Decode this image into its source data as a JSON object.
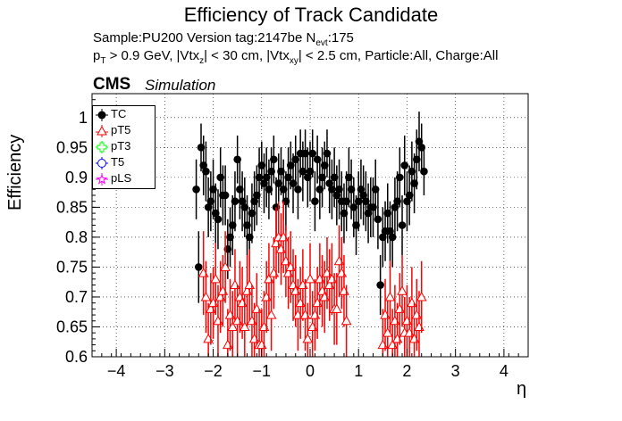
{
  "header": {
    "title": "Efficiency of Track Candidate",
    "sample": "Sample:PU200   Version tag:2147be  N",
    "nevt_sub": "evt",
    "nevt_val": ":175",
    "cuts_pt": "p",
    "cuts_pt_sub": "T",
    "cuts_1": " > 0.9 GeV, |Vtx",
    "cuts_z_sub": "z",
    "cuts_2": "| < 30 cm, |Vtx",
    "cuts_xy_sub": "xy",
    "cuts_3": "| < 2.5 cm, Particle:All, Charge:All",
    "cms": "CMS",
    "simulation": "Simulation"
  },
  "chart_data": {
    "type": "scatter",
    "title": "Efficiency of Track Candidate",
    "xlabel": "η",
    "ylabel": "Efficiency",
    "xlim": [
      -4.5,
      4.5
    ],
    "ylim": [
      0.6,
      1.04
    ],
    "xticks": [
      -4,
      -3,
      -2,
      -1,
      0,
      1,
      2,
      3,
      4
    ],
    "yticks": [
      0.6,
      0.65,
      0.7,
      0.75,
      0.8,
      0.85,
      0.9,
      0.95,
      1
    ],
    "ytick_labels": [
      "0.6",
      "0.65",
      "0.7",
      "0.75",
      "0.8",
      "0.85",
      "0.9",
      "0.95",
      "1"
    ],
    "grid": true,
    "legend_position": "top-left",
    "series": [
      {
        "name": "TC",
        "color": "#000000",
        "marker": "filled-circle",
        "x": [
          -2.35,
          -2.3,
          -2.25,
          -2.2,
          -2.15,
          -2.1,
          -2.05,
          -2.0,
          -1.95,
          -1.9,
          -1.85,
          -1.8,
          -1.75,
          -1.7,
          -1.65,
          -1.6,
          -1.55,
          -1.5,
          -1.45,
          -1.4,
          -1.35,
          -1.3,
          -1.25,
          -1.2,
          -1.15,
          -1.1,
          -1.05,
          -1.0,
          -0.95,
          -0.9,
          -0.85,
          -0.8,
          -0.75,
          -0.7,
          -0.65,
          -0.6,
          -0.55,
          -0.5,
          -0.45,
          -0.4,
          -0.35,
          -0.3,
          -0.25,
          -0.2,
          -0.15,
          -0.1,
          -0.05,
          0.0,
          0.05,
          0.1,
          0.15,
          0.2,
          0.25,
          0.3,
          0.35,
          0.4,
          0.45,
          0.5,
          0.55,
          0.6,
          0.65,
          0.7,
          0.75,
          0.8,
          0.85,
          0.9,
          0.95,
          1.0,
          1.05,
          1.1,
          1.15,
          1.2,
          1.25,
          1.3,
          1.35,
          1.4,
          1.45,
          1.5,
          1.55,
          1.6,
          1.65,
          1.7,
          1.75,
          1.8,
          1.85,
          1.9,
          1.95,
          2.0,
          2.05,
          2.1,
          2.15,
          2.2,
          2.25,
          2.3,
          2.35
        ],
        "y": [
          0.88,
          0.75,
          0.95,
          0.92,
          0.91,
          0.85,
          0.86,
          0.88,
          0.84,
          0.83,
          0.9,
          0.87,
          0.87,
          0.78,
          0.8,
          0.82,
          0.86,
          0.93,
          0.88,
          0.86,
          0.85,
          0.82,
          0.8,
          0.84,
          0.86,
          0.87,
          0.9,
          0.92,
          0.89,
          0.9,
          0.88,
          0.91,
          0.93,
          0.85,
          0.89,
          0.91,
          0.88,
          0.86,
          0.9,
          0.92,
          0.89,
          0.93,
          0.88,
          0.94,
          0.91,
          0.94,
          0.9,
          0.91,
          0.94,
          0.86,
          0.93,
          0.88,
          0.9,
          0.92,
          0.94,
          0.89,
          0.88,
          0.9,
          0.87,
          0.88,
          0.86,
          0.84,
          0.86,
          0.9,
          0.88,
          0.85,
          0.82,
          0.86,
          0.88,
          0.87,
          0.86,
          0.84,
          0.85,
          0.85,
          0.88,
          0.83,
          0.72,
          0.8,
          0.81,
          0.84,
          0.81,
          0.8,
          0.85,
          0.86,
          0.9,
          0.82,
          0.92,
          0.86,
          0.87,
          0.91,
          0.89,
          0.93,
          0.96,
          0.95,
          0.91
        ],
        "err": [
          0.05,
          0.06,
          0.04,
          0.05,
          0.05,
          0.05,
          0.05,
          0.05,
          0.05,
          0.05,
          0.05,
          0.05,
          0.05,
          0.05,
          0.05,
          0.05,
          0.05,
          0.04,
          0.05,
          0.05,
          0.05,
          0.05,
          0.05,
          0.05,
          0.05,
          0.05,
          0.05,
          0.04,
          0.05,
          0.05,
          0.05,
          0.04,
          0.04,
          0.05,
          0.05,
          0.04,
          0.05,
          0.05,
          0.05,
          0.04,
          0.05,
          0.04,
          0.05,
          0.04,
          0.05,
          0.04,
          0.05,
          0.05,
          0.04,
          0.05,
          0.04,
          0.05,
          0.05,
          0.04,
          0.04,
          0.05,
          0.05,
          0.05,
          0.05,
          0.05,
          0.05,
          0.05,
          0.05,
          0.05,
          0.05,
          0.05,
          0.05,
          0.05,
          0.05,
          0.05,
          0.05,
          0.05,
          0.05,
          0.05,
          0.05,
          0.05,
          0.05,
          0.05,
          0.05,
          0.05,
          0.05,
          0.05,
          0.05,
          0.05,
          0.05,
          0.05,
          0.05,
          0.05,
          0.05,
          0.05,
          0.05,
          0.05,
          0.05,
          0.04,
          0.04
        ]
      },
      {
        "name": "pT5",
        "color": "#ff0000",
        "marker": "open-triangle",
        "x": [
          -2.2,
          -2.15,
          -2.1,
          -2.05,
          -2.0,
          -1.95,
          -1.9,
          -1.85,
          -1.8,
          -1.75,
          -1.7,
          -1.65,
          -1.6,
          -1.55,
          -1.5,
          -1.45,
          -1.4,
          -1.35,
          -1.3,
          -1.25,
          -1.2,
          -1.15,
          -1.1,
          -1.05,
          -1.0,
          -0.95,
          -0.9,
          -0.85,
          -0.8,
          -0.75,
          -0.7,
          -0.65,
          -0.6,
          -0.55,
          -0.5,
          -0.45,
          -0.4,
          -0.35,
          -0.3,
          -0.25,
          -0.2,
          -0.15,
          -0.1,
          -0.05,
          0.0,
          0.05,
          0.1,
          0.15,
          0.2,
          0.25,
          0.3,
          0.35,
          0.4,
          0.45,
          0.5,
          0.55,
          0.6,
          0.65,
          0.7,
          0.75,
          1.5,
          1.55,
          1.6,
          1.65,
          1.7,
          1.75,
          1.8,
          1.85,
          1.9,
          1.95,
          2.0,
          2.05,
          2.1,
          2.15,
          2.2,
          2.25,
          2.3
        ],
        "y": [
          0.74,
          0.7,
          0.63,
          0.68,
          0.69,
          0.73,
          0.66,
          0.7,
          0.71,
          0.75,
          0.62,
          0.67,
          0.65,
          0.72,
          0.66,
          0.7,
          0.69,
          0.65,
          0.71,
          0.72,
          0.66,
          0.63,
          0.68,
          0.62,
          0.62,
          0.65,
          0.7,
          0.73,
          0.67,
          0.74,
          0.79,
          0.8,
          0.78,
          0.8,
          0.76,
          0.74,
          0.75,
          0.72,
          0.71,
          0.67,
          0.69,
          0.72,
          0.67,
          0.63,
          0.73,
          0.65,
          0.67,
          0.69,
          0.73,
          0.71,
          0.7,
          0.74,
          0.72,
          0.73,
          0.68,
          0.68,
          0.76,
          0.74,
          0.71,
          0.66,
          0.62,
          0.67,
          0.64,
          0.7,
          0.62,
          0.66,
          0.63,
          0.68,
          0.71,
          0.64,
          0.66,
          0.64,
          0.69,
          0.63,
          0.67,
          0.65,
          0.7
        ],
        "err": [
          0.07,
          0.06,
          0.06,
          0.06,
          0.06,
          0.06,
          0.06,
          0.06,
          0.06,
          0.06,
          0.06,
          0.06,
          0.06,
          0.06,
          0.06,
          0.06,
          0.06,
          0.06,
          0.06,
          0.06,
          0.06,
          0.06,
          0.06,
          0.06,
          0.06,
          0.06,
          0.06,
          0.06,
          0.06,
          0.06,
          0.06,
          0.06,
          0.06,
          0.06,
          0.06,
          0.06,
          0.06,
          0.06,
          0.06,
          0.06,
          0.06,
          0.06,
          0.06,
          0.06,
          0.06,
          0.06,
          0.06,
          0.06,
          0.06,
          0.06,
          0.06,
          0.06,
          0.06,
          0.06,
          0.06,
          0.06,
          0.06,
          0.06,
          0.06,
          0.06,
          0.06,
          0.06,
          0.06,
          0.06,
          0.06,
          0.06,
          0.06,
          0.06,
          0.06,
          0.06,
          0.06,
          0.06,
          0.06,
          0.06,
          0.06,
          0.06,
          0.06
        ]
      },
      {
        "name": "pT3",
        "color": "#00ff00",
        "marker": "open-cross",
        "x": [],
        "y": [],
        "err": []
      },
      {
        "name": "T5",
        "color": "#0000ff",
        "marker": "open-circle",
        "x": [],
        "y": [],
        "err": []
      },
      {
        "name": "pLS",
        "color": "#ff00ff",
        "marker": "open-star",
        "x": [],
        "y": [],
        "err": []
      }
    ]
  }
}
